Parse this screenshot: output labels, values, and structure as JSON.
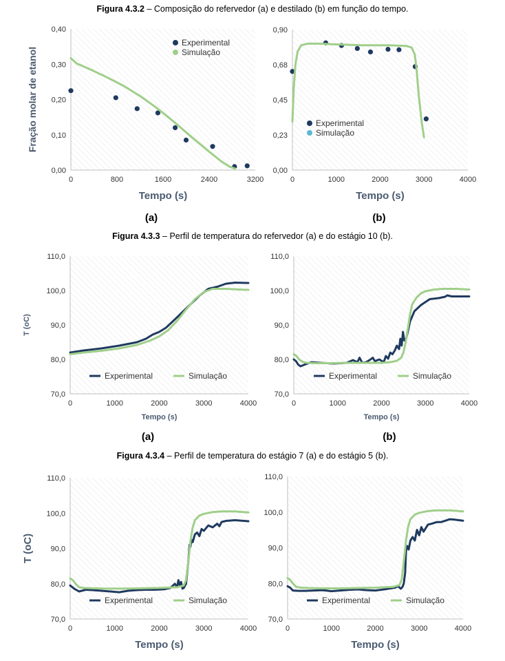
{
  "captions": [
    {
      "fig": "Figura 4.3.2",
      "text": " – Composição do refervedor (a) e destilado (b) em função do tempo."
    },
    {
      "fig": "Figura 4.3.3",
      "text": " – Perfil de temperatura do refervedor (a) e do estágio 10 (b)."
    },
    {
      "fig": "Figura 4.3.4",
      "text": " – Perfil de temperatura do estágio 7 (a) e do estágio 5 (b)."
    }
  ],
  "panel_labels": {
    "a": "(a)",
    "b": "(b)"
  },
  "colors": {
    "experimental": "#1f3a5f",
    "simulacao": "#9fcf8a",
    "simulacao_marker": "#5bb8d4",
    "axis_text": "#4a5a70",
    "hatch": "#e6e6e6"
  },
  "chart_data": [
    {
      "type": "scatter",
      "panel": "4.3.2a",
      "xlabel": "Tempo (s)",
      "ylabel": "Fração molar de etanol",
      "xlim": [
        0,
        3200
      ],
      "ylim": [
        0,
        0.4
      ],
      "xticks": [
        "0",
        "800",
        "1600",
        "2400",
        "3200"
      ],
      "yticks": [
        "0,00",
        "0,10",
        "0,20",
        "0,30",
        "0,40"
      ],
      "legend": "top-right",
      "series": [
        {
          "name": "Experimental",
          "style": "points",
          "x": [
            0,
            780,
            1150,
            1510,
            1810,
            2000,
            2460,
            2840,
            3060
          ],
          "y": [
            0.225,
            0.205,
            0.174,
            0.162,
            0.12,
            0.085,
            0.067,
            0.01,
            0.012
          ]
        },
        {
          "name": "Simulação",
          "style": "line",
          "x": [
            0,
            100,
            300,
            600,
            900,
            1200,
            1500,
            1800,
            2100,
            2400,
            2600,
            2750,
            2850
          ],
          "y": [
            0.317,
            0.302,
            0.288,
            0.265,
            0.24,
            0.21,
            0.175,
            0.135,
            0.093,
            0.052,
            0.026,
            0.01,
            0.004
          ]
        }
      ]
    },
    {
      "type": "scatter",
      "panel": "4.3.2b",
      "xlabel": "Tempo (s)",
      "ylabel": "",
      "xlim": [
        0,
        4000
      ],
      "ylim": [
        0,
        0.9
      ],
      "xticks": [
        "0",
        "1000",
        "2000",
        "3000",
        "4000"
      ],
      "yticks": [
        "0,00",
        "0,23",
        "0,45",
        "0,68",
        "0,90"
      ],
      "legend": "bottom-left",
      "series": [
        {
          "name": "Experimental",
          "style": "points",
          "x": [
            0,
            760,
            1120,
            1480,
            1780,
            2180,
            2430,
            2800,
            3050
          ],
          "y": [
            0.632,
            0.815,
            0.798,
            0.779,
            0.757,
            0.774,
            0.771,
            0.663,
            0.328
          ]
        },
        {
          "name": "Simulação",
          "style": "line",
          "x": [
            0,
            30,
            70,
            120,
            200,
            350,
            600,
            1000,
            1600,
            2200,
            2600,
            2720,
            2790,
            2830,
            2880,
            2950,
            3000
          ],
          "y": [
            0.31,
            0.52,
            0.68,
            0.76,
            0.8,
            0.81,
            0.81,
            0.805,
            0.8,
            0.8,
            0.795,
            0.785,
            0.74,
            0.65,
            0.48,
            0.3,
            0.21
          ]
        }
      ]
    },
    {
      "type": "line",
      "panel": "4.3.3a",
      "xlabel": "Tempo (s)",
      "ylabel": "T (oC)",
      "xlim": [
        0,
        4000
      ],
      "ylim": [
        70,
        110
      ],
      "xticks": [
        "0",
        "1000",
        "2000",
        "3000",
        "4000"
      ],
      "yticks": [
        "70,0",
        "80,0",
        "90,0",
        "100,0",
        "110,0"
      ],
      "legend": "bottom",
      "series": [
        {
          "name": "Experimental",
          "x": [
            0,
            300,
            700,
            1100,
            1500,
            1700,
            1850,
            2000,
            2150,
            2300,
            2500,
            2700,
            2900,
            3100,
            3300,
            3500,
            3700,
            4000
          ],
          "y": [
            82.0,
            82.6,
            83.2,
            84.0,
            85.0,
            86.0,
            87.2,
            88.0,
            89.2,
            91.0,
            93.5,
            96.0,
            98.5,
            100.5,
            101.1,
            102.0,
            102.3,
            102.2
          ]
        },
        {
          "name": "Simulação",
          "x": [
            0,
            300,
            700,
            1100,
            1500,
            1800,
            2000,
            2200,
            2400,
            2600,
            2800,
            3000,
            3200,
            3500,
            3800,
            4000
          ],
          "y": [
            81.5,
            82.0,
            82.5,
            83.2,
            84.2,
            85.5,
            86.7,
            88.5,
            91.2,
            94.5,
            97.5,
            99.6,
            100.5,
            100.5,
            100.3,
            100.2
          ]
        }
      ]
    },
    {
      "type": "line",
      "panel": "4.3.3b",
      "xlabel": "Tempo (s)",
      "ylabel": "",
      "xlim": [
        0,
        4000
      ],
      "ylim": [
        70,
        110
      ],
      "xticks": [
        "0",
        "1000",
        "2000",
        "3000",
        "4000"
      ],
      "yticks": [
        "70,0",
        "80,0",
        "90,0",
        "100,0",
        "110,0"
      ],
      "legend": "bottom",
      "series": [
        {
          "name": "Experimental",
          "x": [
            0,
            50,
            100,
            150,
            250,
            400,
            600,
            900,
            1200,
            1350,
            1450,
            1500,
            1560,
            1650,
            1750,
            1800,
            1850,
            1950,
            2050,
            2100,
            2150,
            2200,
            2250,
            2300,
            2350,
            2400,
            2430,
            2460,
            2490,
            2520,
            2560,
            2600,
            2650,
            2750,
            2900,
            3100,
            3300,
            3450,
            3500,
            3600,
            3800,
            4000
          ],
          "y": [
            80.0,
            79.5,
            78.5,
            78.0,
            78.5,
            79.2,
            79.0,
            78.8,
            79.0,
            79.8,
            79.2,
            80.5,
            79.0,
            79.2,
            80.0,
            80.5,
            79.5,
            80.0,
            79.2,
            81.0,
            80.2,
            82.0,
            81.5,
            82.5,
            84.0,
            83.0,
            86.0,
            84.0,
            88.0,
            85.5,
            86.0,
            88.0,
            91.0,
            94.0,
            95.8,
            97.5,
            97.8,
            98.2,
            98.6,
            98.3,
            98.3,
            98.3
          ]
        },
        {
          "name": "Simulação",
          "x": [
            0,
            60,
            120,
            200,
            300,
            500,
            800,
            1200,
            1600,
            2000,
            2200,
            2350,
            2450,
            2500,
            2550,
            2600,
            2650,
            2700,
            2800,
            2900,
            3000,
            3200,
            3400,
            3700,
            4000
          ],
          "y": [
            81.5,
            81.0,
            80.0,
            79.3,
            79.0,
            78.9,
            78.9,
            79.0,
            79.0,
            79.0,
            79.2,
            79.6,
            80.5,
            82.0,
            85.0,
            89.0,
            93.0,
            96.0,
            98.0,
            99.2,
            99.8,
            100.3,
            100.5,
            100.5,
            100.3
          ]
        }
      ]
    },
    {
      "type": "line",
      "panel": "4.3.4a",
      "xlabel": "Tempo (s)",
      "ylabel": "T (oC)",
      "xlim": [
        0,
        4000
      ],
      "ylim": [
        70,
        110
      ],
      "xticks": [
        "0",
        "1000",
        "2000",
        "3000",
        "4000"
      ],
      "yticks": [
        "70,0",
        "80,0",
        "90,0",
        "100,0",
        "110,0"
      ],
      "legend": "bottom",
      "series": [
        {
          "name": "Experimental",
          "x": [
            0,
            100,
            200,
            350,
            500,
            700,
            900,
            1100,
            1300,
            1500,
            1700,
            1900,
            2100,
            2250,
            2350,
            2400,
            2430,
            2460,
            2490,
            2520,
            2550,
            2600,
            2650,
            2680,
            2700,
            2720,
            2750,
            2800,
            2850,
            2900,
            2950,
            3000,
            3100,
            3200,
            3300,
            3350,
            3400,
            3500,
            3700,
            4000
          ],
          "y": [
            79.5,
            78.5,
            77.8,
            78.3,
            78.2,
            78.0,
            77.8,
            77.6,
            78.0,
            78.2,
            78.3,
            78.3,
            78.4,
            78.8,
            80.0,
            79.0,
            81.0,
            79.5,
            80.5,
            78.6,
            78.8,
            80.0,
            86.0,
            91.0,
            90.5,
            92.5,
            91.8,
            94.0,
            94.5,
            93.5,
            95.5,
            95.0,
            96.5,
            96.0,
            97.0,
            96.3,
            97.5,
            97.8,
            98.0,
            97.7
          ]
        },
        {
          "name": "Simulação",
          "x": [
            0,
            60,
            120,
            200,
            300,
            500,
            800,
            1200,
            1600,
            2000,
            2200,
            2400,
            2550,
            2600,
            2650,
            2700,
            2750,
            2800,
            2900,
            3000,
            3200,
            3400,
            3700,
            4000
          ],
          "y": [
            81.5,
            81.0,
            80.0,
            79.0,
            78.8,
            78.7,
            78.6,
            78.6,
            78.7,
            78.8,
            78.9,
            79.0,
            79.5,
            81.0,
            86.0,
            92.0,
            96.0,
            98.0,
            99.3,
            99.8,
            100.3,
            100.5,
            100.5,
            100.2
          ]
        }
      ]
    },
    {
      "type": "line",
      "panel": "4.3.4b",
      "xlabel": "Tempo (s)",
      "ylabel": "",
      "xlim": [
        0,
        4000
      ],
      "ylim": [
        70,
        110
      ],
      "xticks": [
        "0",
        "1000",
        "2000",
        "3000",
        "4000"
      ],
      "yticks": [
        "70,0",
        "80,0",
        "90,0",
        "100,0",
        "110,0"
      ],
      "legend": "bottom",
      "series": [
        {
          "name": "Experimental",
          "x": [
            0,
            60,
            120,
            250,
            400,
            600,
            800,
            1000,
            1200,
            1400,
            1600,
            1800,
            2000,
            2200,
            2350,
            2450,
            2520,
            2580,
            2620,
            2650,
            2680,
            2700,
            2730,
            2760,
            2800,
            2850,
            2900,
            2950,
            3000,
            3050,
            3100,
            3200,
            3300,
            3400,
            3500,
            3600,
            3700,
            3800,
            4000
          ],
          "y": [
            79.2,
            78.8,
            78.0,
            77.9,
            77.9,
            78.0,
            78.1,
            77.8,
            78.0,
            78.2,
            78.3,
            78.1,
            78.0,
            78.3,
            78.6,
            78.8,
            79.2,
            78.5,
            79.0,
            80.0,
            83.0,
            89.0,
            90.5,
            89.5,
            92.0,
            93.0,
            92.0,
            95.0,
            93.5,
            95.8,
            94.5,
            96.5,
            96.8,
            97.2,
            97.2,
            97.6,
            98.0,
            97.9,
            97.6
          ]
        },
        {
          "name": "Simulação",
          "x": [
            0,
            60,
            120,
            200,
            300,
            500,
            800,
            1200,
            1600,
            2000,
            2200,
            2400,
            2550,
            2600,
            2650,
            2700,
            2750,
            2800,
            2900,
            3000,
            3200,
            3400,
            3700,
            4000
          ],
          "y": [
            81.5,
            81.0,
            80.0,
            79.0,
            78.8,
            78.7,
            78.6,
            78.6,
            78.7,
            78.8,
            78.9,
            79.0,
            79.5,
            81.0,
            86.0,
            92.0,
            96.0,
            98.0,
            99.3,
            99.8,
            100.3,
            100.5,
            100.5,
            100.2
          ]
        }
      ]
    }
  ]
}
